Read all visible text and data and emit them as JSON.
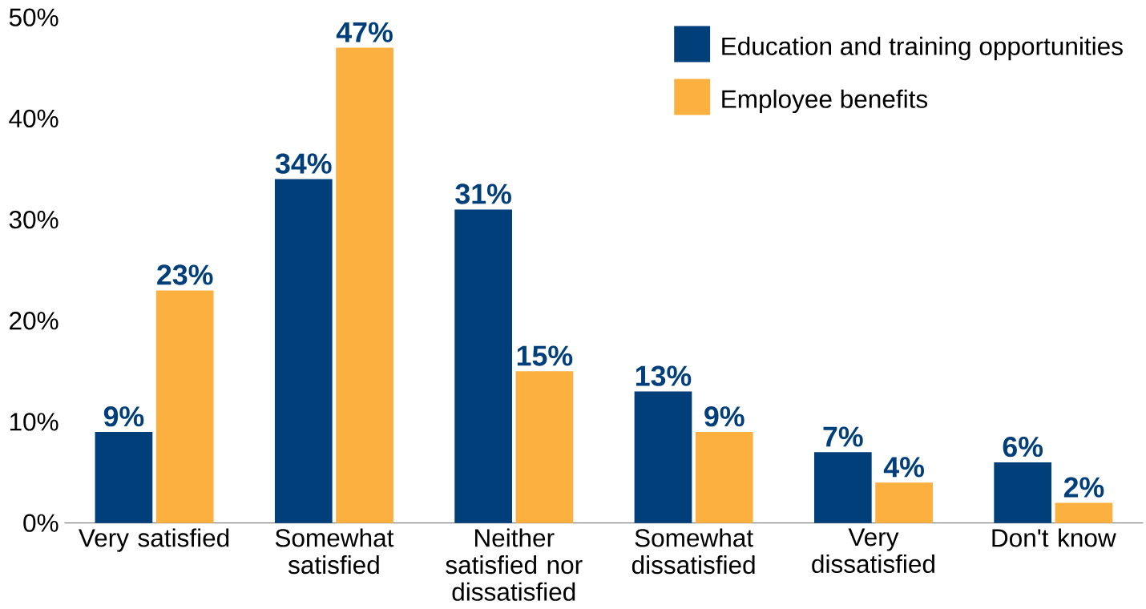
{
  "chart_data": {
    "type": "bar",
    "categories": [
      "Very satisfied",
      "Somewhat satisfied",
      "Neither satisfied nor dissatisfied",
      "Somewhat dissatisfied",
      "Very dissatisfied",
      "Don't know"
    ],
    "series": [
      {
        "name": "Education and training opportunities",
        "color": "#003f7a",
        "values": [
          9,
          34,
          31,
          13,
          7,
          6
        ],
        "value_labels": [
          "9%",
          "34%",
          "31%",
          "13%",
          "7%",
          "6%"
        ]
      },
      {
        "name": "Employee benefits",
        "color": "#fbb040",
        "values": [
          23,
          47,
          15,
          9,
          4,
          2
        ],
        "value_labels": [
          "23%",
          "47%",
          "15%",
          "9%",
          "4%",
          "2%"
        ]
      }
    ],
    "ylim": [
      0,
      50
    ],
    "yticks": [
      {
        "value": 0,
        "label": "0%"
      },
      {
        "value": 10,
        "label": "10%"
      },
      {
        "value": 20,
        "label": "20%"
      },
      {
        "value": 30,
        "label": "30%"
      },
      {
        "value": 40,
        "label": "40%"
      },
      {
        "value": 50,
        "label": "50%"
      }
    ],
    "legend": "top right"
  }
}
